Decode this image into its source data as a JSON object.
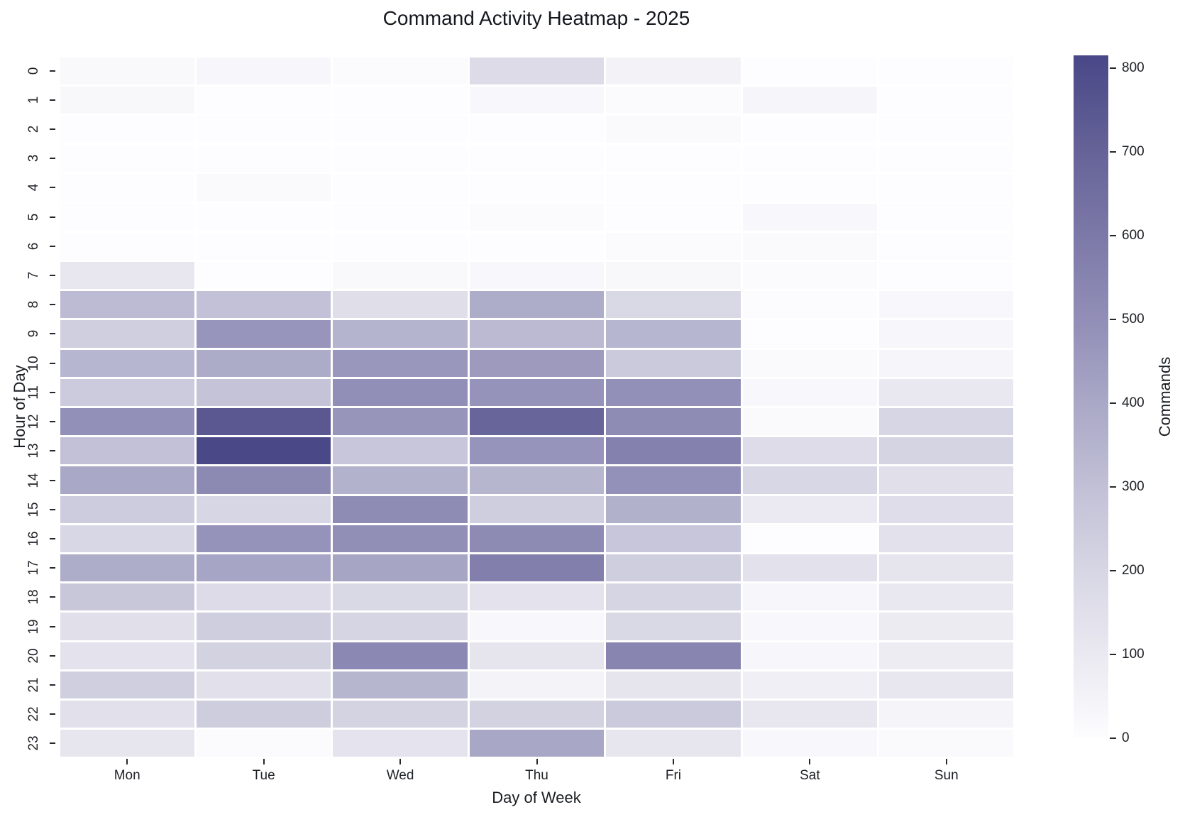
{
  "chart_data": {
    "type": "heatmap",
    "title": "Command Activity Heatmap - 2025",
    "xlabel": "Day of Week",
    "ylabel": "Hour of Day",
    "days": [
      "Mon",
      "Tue",
      "Wed",
      "Thu",
      "Fri",
      "Sat",
      "Sun"
    ],
    "hours": [
      "0",
      "1",
      "2",
      "3",
      "4",
      "5",
      "6",
      "7",
      "8",
      "9",
      "10",
      "11",
      "12",
      "13",
      "14",
      "15",
      "16",
      "17",
      "18",
      "19",
      "20",
      "21",
      "22",
      "23"
    ],
    "values": [
      [
        22,
        30,
        10,
        175,
        52,
        0,
        0
      ],
      [
        28,
        0,
        0,
        25,
        10,
        35,
        0
      ],
      [
        0,
        0,
        0,
        0,
        18,
        0,
        0
      ],
      [
        0,
        0,
        0,
        0,
        0,
        0,
        0
      ],
      [
        0,
        18,
        0,
        0,
        0,
        0,
        0
      ],
      [
        0,
        0,
        0,
        10,
        0,
        25,
        0
      ],
      [
        0,
        0,
        0,
        0,
        12,
        15,
        0
      ],
      [
        110,
        0,
        20,
        25,
        28,
        10,
        0
      ],
      [
        320,
        295,
        158,
        380,
        190,
        5,
        25
      ],
      [
        230,
        475,
        348,
        325,
        340,
        0,
        30
      ],
      [
        340,
        385,
        465,
        452,
        255,
        15,
        35
      ],
      [
        250,
        285,
        498,
        480,
        495,
        25,
        105
      ],
      [
        495,
        745,
        472,
        690,
        515,
        15,
        200
      ],
      [
        295,
        812,
        275,
        478,
        560,
        170,
        210
      ],
      [
        400,
        525,
        360,
        342,
        490,
        195,
        155
      ],
      [
        245,
        200,
        515,
        235,
        362,
        95,
        165
      ],
      [
        195,
        480,
        497,
        518,
        272,
        0,
        135
      ],
      [
        380,
        410,
        412,
        572,
        235,
        140,
        120
      ],
      [
        270,
        175,
        192,
        130,
        205,
        30,
        105
      ],
      [
        155,
        235,
        205,
        25,
        192,
        25,
        90
      ],
      [
        132,
        218,
        530,
        122,
        542,
        30,
        85
      ],
      [
        230,
        150,
        342,
        45,
        122,
        70,
        110
      ],
      [
        145,
        240,
        212,
        218,
        255,
        108,
        40
      ],
      [
        118,
        10,
        126,
        405,
        115,
        26,
        18
      ]
    ],
    "value_range": [
      0,
      815
    ],
    "grid": "white-gaps",
    "legend_position": "right-colorbar",
    "colorbar": {
      "label": "Commands",
      "ticks": [
        0,
        100,
        200,
        300,
        400,
        500,
        600,
        700,
        800
      ]
    },
    "colormap": [
      {
        "v": 0,
        "c": "#fdfcfe"
      },
      {
        "v": 100,
        "c": "#eae9f1"
      },
      {
        "v": 200,
        "c": "#d7d6e4"
      },
      {
        "v": 300,
        "c": "#c1c0d6"
      },
      {
        "v": 400,
        "c": "#a9a8c6"
      },
      {
        "v": 500,
        "c": "#918eb7"
      },
      {
        "v": 600,
        "c": "#7c79a8"
      },
      {
        "v": 700,
        "c": "#666398"
      },
      {
        "v": 815,
        "c": "#494787"
      }
    ]
  }
}
